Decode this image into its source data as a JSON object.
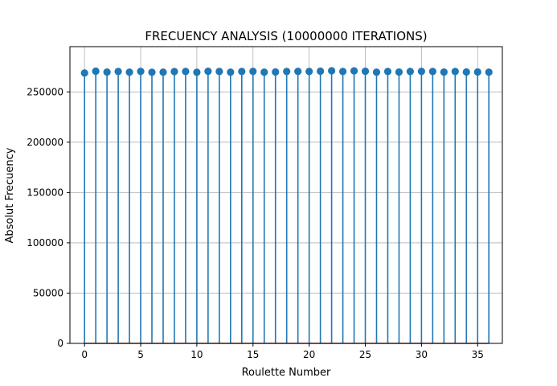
{
  "chart_data": {
    "type": "stem",
    "title": "FRECUENCY ANALYSIS (10000000 ITERATIONS)",
    "xlabel": "Roulette Number",
    "ylabel": "Absolut Frecuency",
    "x": [
      0,
      1,
      2,
      3,
      4,
      5,
      6,
      7,
      8,
      9,
      10,
      11,
      12,
      13,
      14,
      15,
      16,
      17,
      18,
      19,
      20,
      21,
      22,
      23,
      24,
      25,
      26,
      27,
      28,
      29,
      30,
      31,
      32,
      33,
      34,
      35,
      36
    ],
    "values": [
      268800,
      270600,
      269700,
      270300,
      269600,
      270400,
      269500,
      269600,
      270200,
      270300,
      269500,
      270500,
      270300,
      269600,
      270300,
      270400,
      269600,
      269800,
      270300,
      270400,
      270300,
      270600,
      271000,
      270300,
      270900,
      270500,
      269600,
      270300,
      269700,
      270300,
      270400,
      270300,
      269700,
      270300,
      269800,
      269800,
      269600
    ],
    "xlim": [
      -1.3,
      37.2
    ],
    "ylim": [
      0,
      295000
    ],
    "xticks": [
      0,
      5,
      10,
      15,
      20,
      25,
      30,
      35
    ],
    "yticks": [
      0,
      50000,
      100000,
      150000,
      200000,
      250000
    ],
    "xtick_labels": [
      "0",
      "5",
      "10",
      "15",
      "20",
      "25",
      "30",
      "35"
    ],
    "ytick_labels": [
      "0",
      "50000",
      "100000",
      "150000",
      "200000",
      "250000"
    ],
    "grid": true,
    "colors": {
      "stem": "#1f77b4",
      "baseline": "#d62728",
      "grid": "#b0b0b0"
    }
  }
}
